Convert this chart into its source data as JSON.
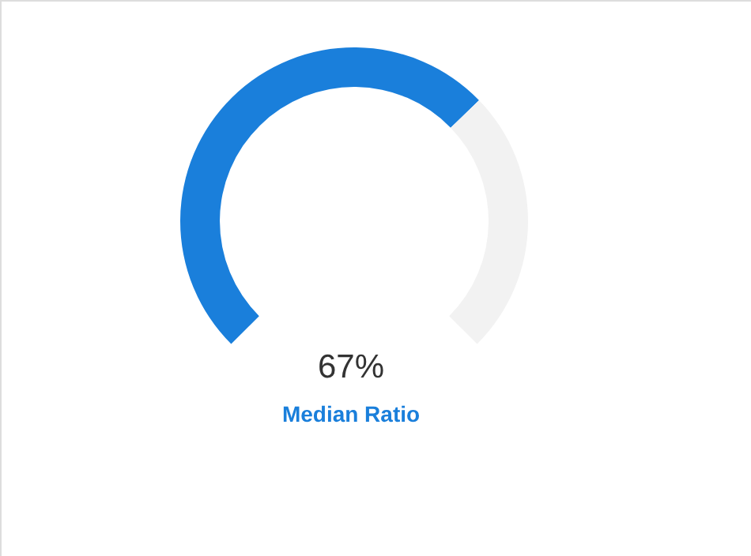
{
  "chart_data": {
    "type": "donut",
    "title": "Median Ratio",
    "categories": [
      null,
      null
    ],
    "values": [
      67,
      33
    ],
    "colors": [
      "#1a7fdb",
      "#f2f2f2"
    ],
    "annotations": [
      "67%"
    ]
  }
}
